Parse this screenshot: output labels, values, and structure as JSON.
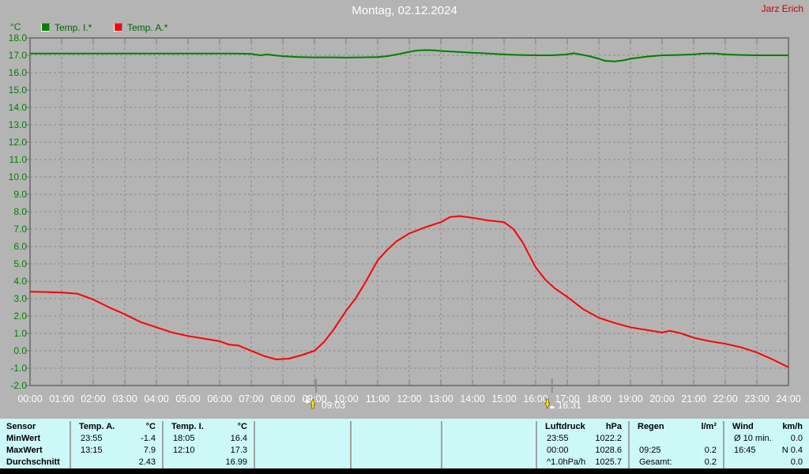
{
  "header": {
    "title": "Montag, 02.12.2024",
    "user": "Jarz Erich"
  },
  "legend": {
    "unit_label": "°C",
    "items": [
      {
        "label": "Temp. I.*",
        "color": "#008000"
      },
      {
        "label": "Temp. A.*",
        "color": "#ff0000"
      }
    ]
  },
  "chart_data": {
    "type": "line",
    "title": "Montag, 02.12.2024",
    "ylabel": "°C",
    "ylim": [
      -2,
      18
    ],
    "xlim_hours": [
      0,
      24
    ],
    "grid": true,
    "legend_position": "top-left",
    "yticks": [
      "18.0",
      "17.0",
      "16.0",
      "15.0",
      "14.0",
      "13.0",
      "12.0",
      "11.0",
      "10.0",
      "9.0",
      "8.0",
      "7.0",
      "6.0",
      "5.0",
      "4.0",
      "3.0",
      "2.0",
      "1.0",
      "0.0",
      "-1.0",
      "-2.0"
    ],
    "xticks": [
      "00:00",
      "01:00",
      "02:00",
      "03:00",
      "04:00",
      "05:00",
      "06:00",
      "07:00",
      "08:00",
      "09:00",
      "10:00",
      "11:00",
      "12:00",
      "13:00",
      "14:00",
      "15:00",
      "16:00",
      "17:00",
      "18:00",
      "19:00",
      "20:00",
      "21:00",
      "22:00",
      "23:00",
      "24:00"
    ],
    "series": [
      {
        "name": "Temp. I.*",
        "color": "#008000",
        "points": [
          [
            0,
            17.1
          ],
          [
            0.5,
            17.1
          ],
          [
            1,
            17.1
          ],
          [
            1.5,
            17.1
          ],
          [
            2,
            17.1
          ],
          [
            2.5,
            17.1
          ],
          [
            3,
            17.1
          ],
          [
            3.5,
            17.1
          ],
          [
            4,
            17.1
          ],
          [
            4.5,
            17.1
          ],
          [
            5,
            17.1
          ],
          [
            5.5,
            17.1
          ],
          [
            6,
            17.1
          ],
          [
            6.5,
            17.1
          ],
          [
            7,
            17.08
          ],
          [
            7.3,
            17.0
          ],
          [
            7.5,
            17.05
          ],
          [
            7.8,
            16.98
          ],
          [
            8,
            16.95
          ],
          [
            8.5,
            16.9
          ],
          [
            9,
            16.88
          ],
          [
            9.5,
            16.88
          ],
          [
            10,
            16.87
          ],
          [
            10.5,
            16.88
          ],
          [
            11,
            16.9
          ],
          [
            11.3,
            16.95
          ],
          [
            11.7,
            17.08
          ],
          [
            12,
            17.2
          ],
          [
            12.2,
            17.27
          ],
          [
            12.5,
            17.3
          ],
          [
            12.8,
            17.28
          ],
          [
            13,
            17.25
          ],
          [
            13.5,
            17.2
          ],
          [
            14,
            17.15
          ],
          [
            14.5,
            17.1
          ],
          [
            15,
            17.05
          ],
          [
            15.5,
            17.02
          ],
          [
            16,
            17.0
          ],
          [
            16.5,
            17.0
          ],
          [
            17,
            17.05
          ],
          [
            17.2,
            17.12
          ],
          [
            17.4,
            17.05
          ],
          [
            17.7,
            16.95
          ],
          [
            18,
            16.8
          ],
          [
            18.2,
            16.68
          ],
          [
            18.5,
            16.65
          ],
          [
            18.8,
            16.72
          ],
          [
            19,
            16.8
          ],
          [
            19.5,
            16.92
          ],
          [
            20,
            17.0
          ],
          [
            20.5,
            17.02
          ],
          [
            21,
            17.05
          ],
          [
            21.3,
            17.1
          ],
          [
            21.7,
            17.1
          ],
          [
            22,
            17.05
          ],
          [
            22.5,
            17.02
          ],
          [
            23,
            17.0
          ],
          [
            23.5,
            17.0
          ],
          [
            24,
            17.0
          ]
        ]
      },
      {
        "name": "Temp. A.*",
        "color": "#ff0000",
        "points": [
          [
            0,
            3.4
          ],
          [
            0.5,
            3.38
          ],
          [
            1,
            3.35
          ],
          [
            1.5,
            3.28
          ],
          [
            2,
            2.95
          ],
          [
            2.5,
            2.5
          ],
          [
            3,
            2.1
          ],
          [
            3.5,
            1.65
          ],
          [
            4,
            1.35
          ],
          [
            4.5,
            1.05
          ],
          [
            5,
            0.85
          ],
          [
            5.5,
            0.7
          ],
          [
            6,
            0.55
          ],
          [
            6.3,
            0.35
          ],
          [
            6.6,
            0.3
          ],
          [
            7,
            0.0
          ],
          [
            7.4,
            -0.3
          ],
          [
            7.8,
            -0.5
          ],
          [
            8.2,
            -0.45
          ],
          [
            8.6,
            -0.25
          ],
          [
            9,
            0.0
          ],
          [
            9.3,
            0.5
          ],
          [
            9.6,
            1.2
          ],
          [
            10,
            2.3
          ],
          [
            10.3,
            3.0
          ],
          [
            10.6,
            3.9
          ],
          [
            11,
            5.2
          ],
          [
            11.3,
            5.8
          ],
          [
            11.6,
            6.3
          ],
          [
            12,
            6.75
          ],
          [
            12.5,
            7.1
          ],
          [
            13,
            7.4
          ],
          [
            13.3,
            7.7
          ],
          [
            13.6,
            7.75
          ],
          [
            14,
            7.65
          ],
          [
            14.5,
            7.5
          ],
          [
            15,
            7.4
          ],
          [
            15.3,
            7.0
          ],
          [
            15.6,
            6.2
          ],
          [
            16,
            4.8
          ],
          [
            16.3,
            4.1
          ],
          [
            16.6,
            3.6
          ],
          [
            17,
            3.1
          ],
          [
            17.5,
            2.4
          ],
          [
            18,
            1.9
          ],
          [
            18.5,
            1.6
          ],
          [
            19,
            1.35
          ],
          [
            19.5,
            1.2
          ],
          [
            20,
            1.05
          ],
          [
            20.25,
            1.15
          ],
          [
            20.6,
            1.0
          ],
          [
            21,
            0.75
          ],
          [
            21.5,
            0.55
          ],
          [
            22,
            0.4
          ],
          [
            22.5,
            0.2
          ],
          [
            23,
            -0.1
          ],
          [
            23.5,
            -0.5
          ],
          [
            24,
            -0.95
          ]
        ]
      }
    ],
    "sun_markers": [
      {
        "label": "09:03",
        "hour": 9.05,
        "type": "sunrise"
      },
      {
        "label": "16:31",
        "hour": 16.52,
        "type": "sunset"
      }
    ]
  },
  "table": {
    "row_labels": [
      "Sensor",
      "MinWert",
      "MaxWert",
      "Durchschnitt"
    ],
    "columns": [
      {
        "name": "Temp. A.",
        "unit": "°C",
        "rows": [
          [
            "23:55",
            "-1.4"
          ],
          [
            "13:15",
            "7.9"
          ],
          [
            "",
            "2.43"
          ]
        ]
      },
      {
        "name": "Temp. I.",
        "unit": "°C",
        "rows": [
          [
            "18:05",
            "16.4"
          ],
          [
            "12:10",
            "17.3"
          ],
          [
            "",
            "16.99"
          ]
        ]
      },
      {
        "name": "",
        "unit": "",
        "rows": [
          [
            "",
            ""
          ],
          [
            "",
            ""
          ],
          [
            "",
            ""
          ]
        ]
      },
      {
        "name": "",
        "unit": "",
        "rows": [
          [
            "",
            ""
          ],
          [
            "",
            ""
          ],
          [
            "",
            ""
          ]
        ]
      },
      {
        "name": "",
        "unit": "",
        "rows": [
          [
            "",
            ""
          ],
          [
            "",
            ""
          ],
          [
            "",
            ""
          ]
        ]
      },
      {
        "name": "Luftdruck",
        "unit": "hPa",
        "rows": [
          [
            "23:55",
            "1022.2"
          ],
          [
            "00:00",
            "1028.6"
          ],
          [
            "^1.0hPa/h",
            "1025.7"
          ]
        ]
      },
      {
        "name": "Regen",
        "unit": "l/m²",
        "rows": [
          [
            "",
            ""
          ],
          [
            "09:25",
            "0.2"
          ],
          [
            "Gesamt:",
            "0.2"
          ]
        ]
      },
      {
        "name": "Wind",
        "unit": "km/h",
        "rows": [
          [
            "Ø 10 min.",
            "0.0"
          ],
          [
            "16:45",
            "N 0.4"
          ],
          [
            "",
            "0.0"
          ]
        ]
      }
    ]
  },
  "colors": {
    "background": "#b4b4b4",
    "plot_frame": "#7a7a7a",
    "grid": "#8d8d8d",
    "axis_text_y": "#008000",
    "axis_text_x": "#ffffff",
    "title": "#ffffff",
    "user": "#cc0000",
    "table_bg": "#cdf8f8",
    "table_divider": "#a2a2a2",
    "bottom_bar": "#000000",
    "sun_marker_yellow": "#ffe000"
  }
}
